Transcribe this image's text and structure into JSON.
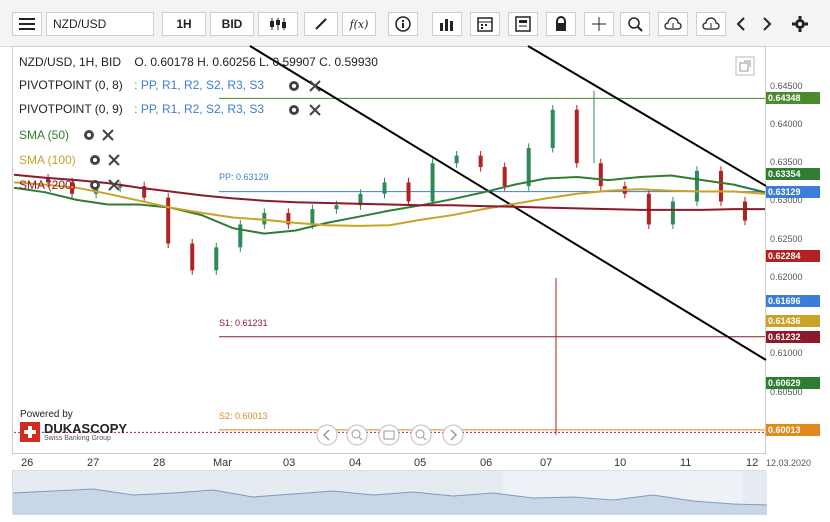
{
  "toolbar": {
    "instrument": "NZD/USD",
    "period": "1H",
    "side": "BID"
  },
  "ohlc_line": {
    "instrument": "NZD/USD, 1H, BID",
    "values": "O. 0.60178 H. 0.60256 L. 0.59907 C. 0.59930"
  },
  "indicators": [
    {
      "label": "PIVOTPOINT (0, 8)",
      "suffix": ": PP, R1, R2, S2, R3, S3"
    },
    {
      "label": "PIVOTPOINT (0, 9)",
      "suffix": ": PP, R1, R2, S2, R3, S3"
    },
    {
      "label": "SMA (50)"
    },
    {
      "label": "SMA (100)"
    },
    {
      "label": "SMA (200)"
    }
  ],
  "pivot_labels": {
    "pp": "PP: 0.63129",
    "s1": "S1: 0.61231",
    "s2": "S2: 0.60013"
  },
  "branding": {
    "powered": "Powered by",
    "name": "DUKASCOPY",
    "sub": "Swiss Banking Group"
  },
  "colors": {
    "sma50": "#2e7d32",
    "sma100": "#c9a227",
    "sma200": "#8b1a2b",
    "pp": "#3b7dd8",
    "s1": "#8b1a2b",
    "s2": "#e08a1e",
    "r_line": "#4b8a2f",
    "up": "#2e8b57",
    "down": "#b22222"
  },
  "chart_data": {
    "type": "line",
    "title": "NZD/USD, 1H, BID",
    "ylim": [
      0.5975,
      0.6485
    ],
    "y_ticks": [
      "0.64500",
      "0.64000",
      "0.63500",
      "0.63000",
      "0.62500",
      "0.62000",
      "0.61000",
      "0.60500"
    ],
    "x_ticks": [
      "26",
      "27",
      "28",
      "Mar",
      "03",
      "04",
      "05",
      "06",
      "07",
      "10",
      "11",
      "12"
    ],
    "x_end_label": "12.03.2020",
    "price_badges": [
      {
        "value": "0.64348",
        "color": "#4b8a2f"
      },
      {
        "value": "0.63354",
        "color": "#2e7d32"
      },
      {
        "value": "0.63129",
        "color": "#3b7dd8"
      },
      {
        "value": "0.62284",
        "color": "#b22222"
      },
      {
        "value": "0.61696",
        "color": "#3b7dd8"
      },
      {
        "value": "0.61436",
        "color": "#c9a227"
      },
      {
        "value": "0.61232",
        "color": "#8b1a2b"
      },
      {
        "value": "0.60629",
        "color": "#2e7d32"
      },
      {
        "value": "0.60013",
        "color": "#e08a1e"
      }
    ],
    "horizontal_lines": [
      {
        "name": "R",
        "value": 0.64348
      },
      {
        "name": "PP",
        "value": 0.63129
      },
      {
        "name": "S1",
        "value": 0.61231
      },
      {
        "name": "S2",
        "value": 0.60013
      }
    ],
    "series": [
      {
        "name": "SMA (50)",
        "values": [
          0.6318,
          0.6312,
          0.6302,
          0.6296,
          0.6296,
          0.6292,
          0.6282,
          0.6265,
          0.6258,
          0.6262,
          0.6272,
          0.628,
          0.6288,
          0.6295,
          0.6303,
          0.6312,
          0.6322,
          0.633,
          0.6332,
          0.6328,
          0.6332,
          0.6334,
          0.6328,
          0.6322,
          0.6312
        ]
      },
      {
        "name": "SMA (100)",
        "values": [
          0.6325,
          0.6322,
          0.6318,
          0.631,
          0.6301,
          0.6292,
          0.6285,
          0.6279,
          0.6276,
          0.6272,
          0.6269,
          0.6268,
          0.6269,
          0.6276,
          0.6282,
          0.629,
          0.6297,
          0.6304,
          0.631,
          0.6314,
          0.6316,
          0.6314,
          0.6313,
          0.6313,
          0.631
        ]
      },
      {
        "name": "SMA (200)",
        "values": [
          0.6335,
          0.6331,
          0.6328,
          0.6324,
          0.6318,
          0.6313,
          0.6308,
          0.6304,
          0.6301,
          0.6299,
          0.6298,
          0.6297,
          0.6296,
          0.6295,
          0.6295,
          0.6294,
          0.6293,
          0.6292,
          0.6291,
          0.629,
          0.6289,
          0.6289,
          0.6289,
          0.629,
          0.629
        ]
      },
      {
        "name": "NZD/USD close",
        "values": [
          0.633,
          0.6325,
          0.631,
          0.6318,
          0.632,
          0.6305,
          0.6245,
          0.621,
          0.624,
          0.627,
          0.6285,
          0.627,
          0.629,
          0.6295,
          0.631,
          0.6325,
          0.63,
          0.635,
          0.636,
          0.6345,
          0.632,
          0.637,
          0.642,
          0.635,
          0.632,
          0.631,
          0.627,
          0.63,
          0.634,
          0.63,
          0.6275
        ]
      }
    ]
  }
}
